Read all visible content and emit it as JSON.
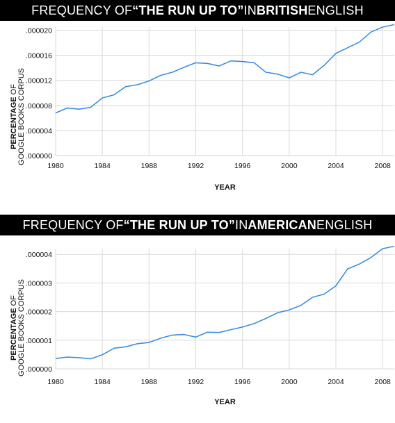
{
  "charts": [
    {
      "title_parts": [
        {
          "text": "FREQUENCY OF ",
          "bold": false
        },
        {
          "text": "“THE RUN UP TO”",
          "bold": true
        },
        {
          "text": " IN ",
          "bold": false
        },
        {
          "text": "BRITISH",
          "bold": true
        },
        {
          "text": " ENGLISH",
          "bold": false
        }
      ]
    },
    {
      "title_parts": [
        {
          "text": "FREQUENCY OF ",
          "bold": false
        },
        {
          "text": "“THE RUN UP TO”",
          "bold": true
        },
        {
          "text": " IN ",
          "bold": false
        },
        {
          "text": "AMERICAN",
          "bold": true
        },
        {
          "text": " ENGLISH",
          "bold": false
        }
      ]
    }
  ],
  "chart_data": [
    {
      "type": "line",
      "title": "FREQUENCY OF “THE RUN UP TO” IN BRITISH ENGLISH",
      "xlabel": "YEAR",
      "ylabel_bold": "PERCENTAGE",
      "ylabel_rest": "OF GOOGLE BOOKS CORPUS",
      "xlim": [
        1980,
        2009
      ],
      "ylim": [
        0,
        2.05e-05
      ],
      "x_ticks": [
        "1980",
        "1984",
        "1988",
        "1992",
        "1996",
        "2000",
        "2004",
        "2008"
      ],
      "y_ticks": [
        {
          "value": 0.0,
          "label": ".000000"
        },
        {
          "value": 4e-06,
          "label": ".000004"
        },
        {
          "value": 8e-06,
          "label": ".000008"
        },
        {
          "value": 1.2e-05,
          "label": ".000012"
        },
        {
          "value": 1.6e-05,
          "label": ".000016"
        },
        {
          "value": 2e-05,
          "label": ".000020"
        }
      ],
      "grid": true,
      "line_color": "#3a8ee6",
      "series": [
        {
          "x": [
            1980,
            1981,
            1982,
            1983,
            1984,
            1985,
            1986,
            1987,
            1988,
            1989,
            1990,
            1991,
            1992,
            1993,
            1994,
            1995,
            1996,
            1997,
            1998,
            1999,
            2000,
            2001,
            2002,
            2003,
            2004,
            2005,
            2006,
            2007,
            2008,
            2009
          ],
          "y": [
            6.8e-06,
            7.6e-06,
            7.4e-06,
            7.7e-06,
            9.2e-06,
            9.7e-06,
            1.1e-05,
            1.13e-05,
            1.19e-05,
            1.28e-05,
            1.33e-05,
            1.41e-05,
            1.48e-05,
            1.47e-05,
            1.43e-05,
            1.51e-05,
            1.5e-05,
            1.48e-05,
            1.33e-05,
            1.3e-05,
            1.24e-05,
            1.33e-05,
            1.29e-05,
            1.44e-05,
            1.63e-05,
            1.72e-05,
            1.81e-05,
            1.97e-05,
            2.05e-05,
            2.09e-05
          ]
        }
      ]
    },
    {
      "type": "line",
      "title": "FREQUENCY OF “THE RUN UP TO” IN AMERICAN ENGLISH",
      "xlabel": "YEAR",
      "ylabel_bold": "PERCENTAGE",
      "ylabel_rest": "OF GOOGLE BOOKS CORPUS",
      "xlim": [
        1980,
        2009
      ],
      "ylim": [
        0,
        4.2e-06
      ],
      "x_ticks": [
        "1980",
        "1984",
        "1988",
        "1992",
        "1996",
        "2000",
        "2004",
        "2008"
      ],
      "y_ticks": [
        {
          "value": 0.0,
          "label": ".000000"
        },
        {
          "value": 1e-06,
          "label": ".000001"
        },
        {
          "value": 2e-06,
          "label": ".000002"
        },
        {
          "value": 3e-06,
          "label": ".000003"
        },
        {
          "value": 4e-06,
          "label": ".000004"
        }
      ],
      "grid": true,
      "line_color": "#3a8ee6",
      "series": [
        {
          "x": [
            1980,
            1981,
            1982,
            1983,
            1984,
            1985,
            1986,
            1987,
            1988,
            1989,
            1990,
            1991,
            1992,
            1993,
            1994,
            1995,
            1996,
            1997,
            1998,
            1999,
            2000,
            2001,
            2002,
            2003,
            2004,
            2005,
            2006,
            2007,
            2008,
            2009
          ],
          "y": [
            3.6e-07,
            4.1e-07,
            3.9e-07,
            3.5e-07,
            4.9e-07,
            7.2e-07,
            7.7e-07,
            8.8e-07,
            9.2e-07,
            1.07e-06,
            1.18e-06,
            1.2e-06,
            1.11e-06,
            1.28e-06,
            1.27e-06,
            1.37e-06,
            1.46e-06,
            1.58e-06,
            1.76e-06,
            1.96e-06,
            2.06e-06,
            2.22e-06,
            2.5e-06,
            2.61e-06,
            2.9e-06,
            3.49e-06,
            3.66e-06,
            3.89e-06,
            4.2e-06,
            4.45e-06
          ]
        }
      ]
    }
  ]
}
